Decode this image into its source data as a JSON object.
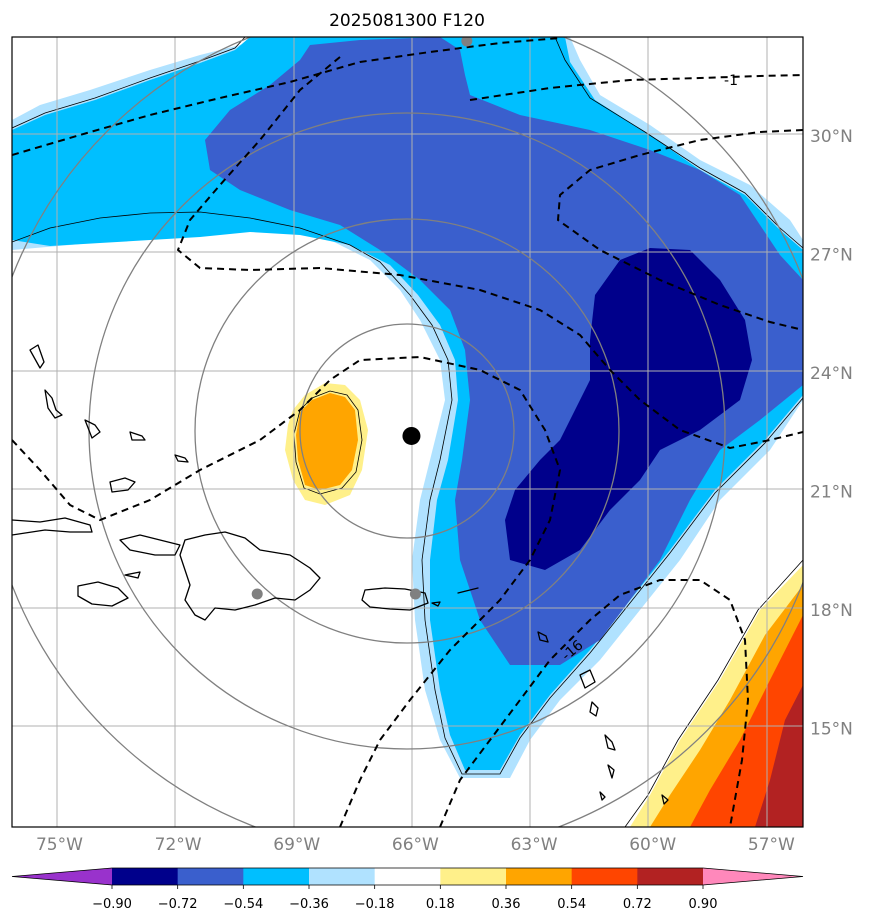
{
  "chart_data": {
    "type": "map",
    "title": "2025081300 F120",
    "lon_ticks": [
      "75°W",
      "72°W",
      "69°W",
      "66°W",
      "63°W",
      "60°W",
      "57°W"
    ],
    "lat_ticks": [
      "30°N",
      "27°N",
      "24°N",
      "21°N",
      "18°N",
      "15°N"
    ],
    "lon_values": [
      -75,
      -72,
      -69,
      -66,
      -63,
      -60,
      -57
    ],
    "lat_values": [
      30,
      27,
      24,
      21,
      18,
      15
    ],
    "extent": {
      "lon": [
        -76.2,
        -56.2
      ],
      "lat": [
        12.5,
        32.5
      ]
    },
    "colorbar": {
      "levels": [
        "−0.90",
        "−0.72",
        "−0.54",
        "−0.36",
        "−0.18",
        "0.18",
        "0.36",
        "0.54",
        "0.72",
        "0.90"
      ],
      "colors": [
        "#9932cc",
        "#00008b",
        "#3a5fcd",
        "#00bfff",
        "#b0e2ff",
        "#ffffff",
        "#fff08a",
        "#ffa500",
        "#ff4500",
        "#b22222",
        "#ff88bb"
      ]
    },
    "contour_labels": [
      "-1",
      "-16"
    ],
    "center": {
      "lon": -66.1,
      "lat": 22.4
    },
    "markers": [
      {
        "lon": -64.7,
        "lat": 32.4
      },
      {
        "lon": -70.0,
        "lat": 18.4
      },
      {
        "lon": -66.0,
        "lat": 18.4
      }
    ],
    "colors": {
      "range_rings": "#808080",
      "gridlines": "#b0b0b0",
      "coastline": "#000000",
      "dashed_contour": "#000000",
      "center_marker": "#000000",
      "station_marker": "#808080"
    }
  }
}
